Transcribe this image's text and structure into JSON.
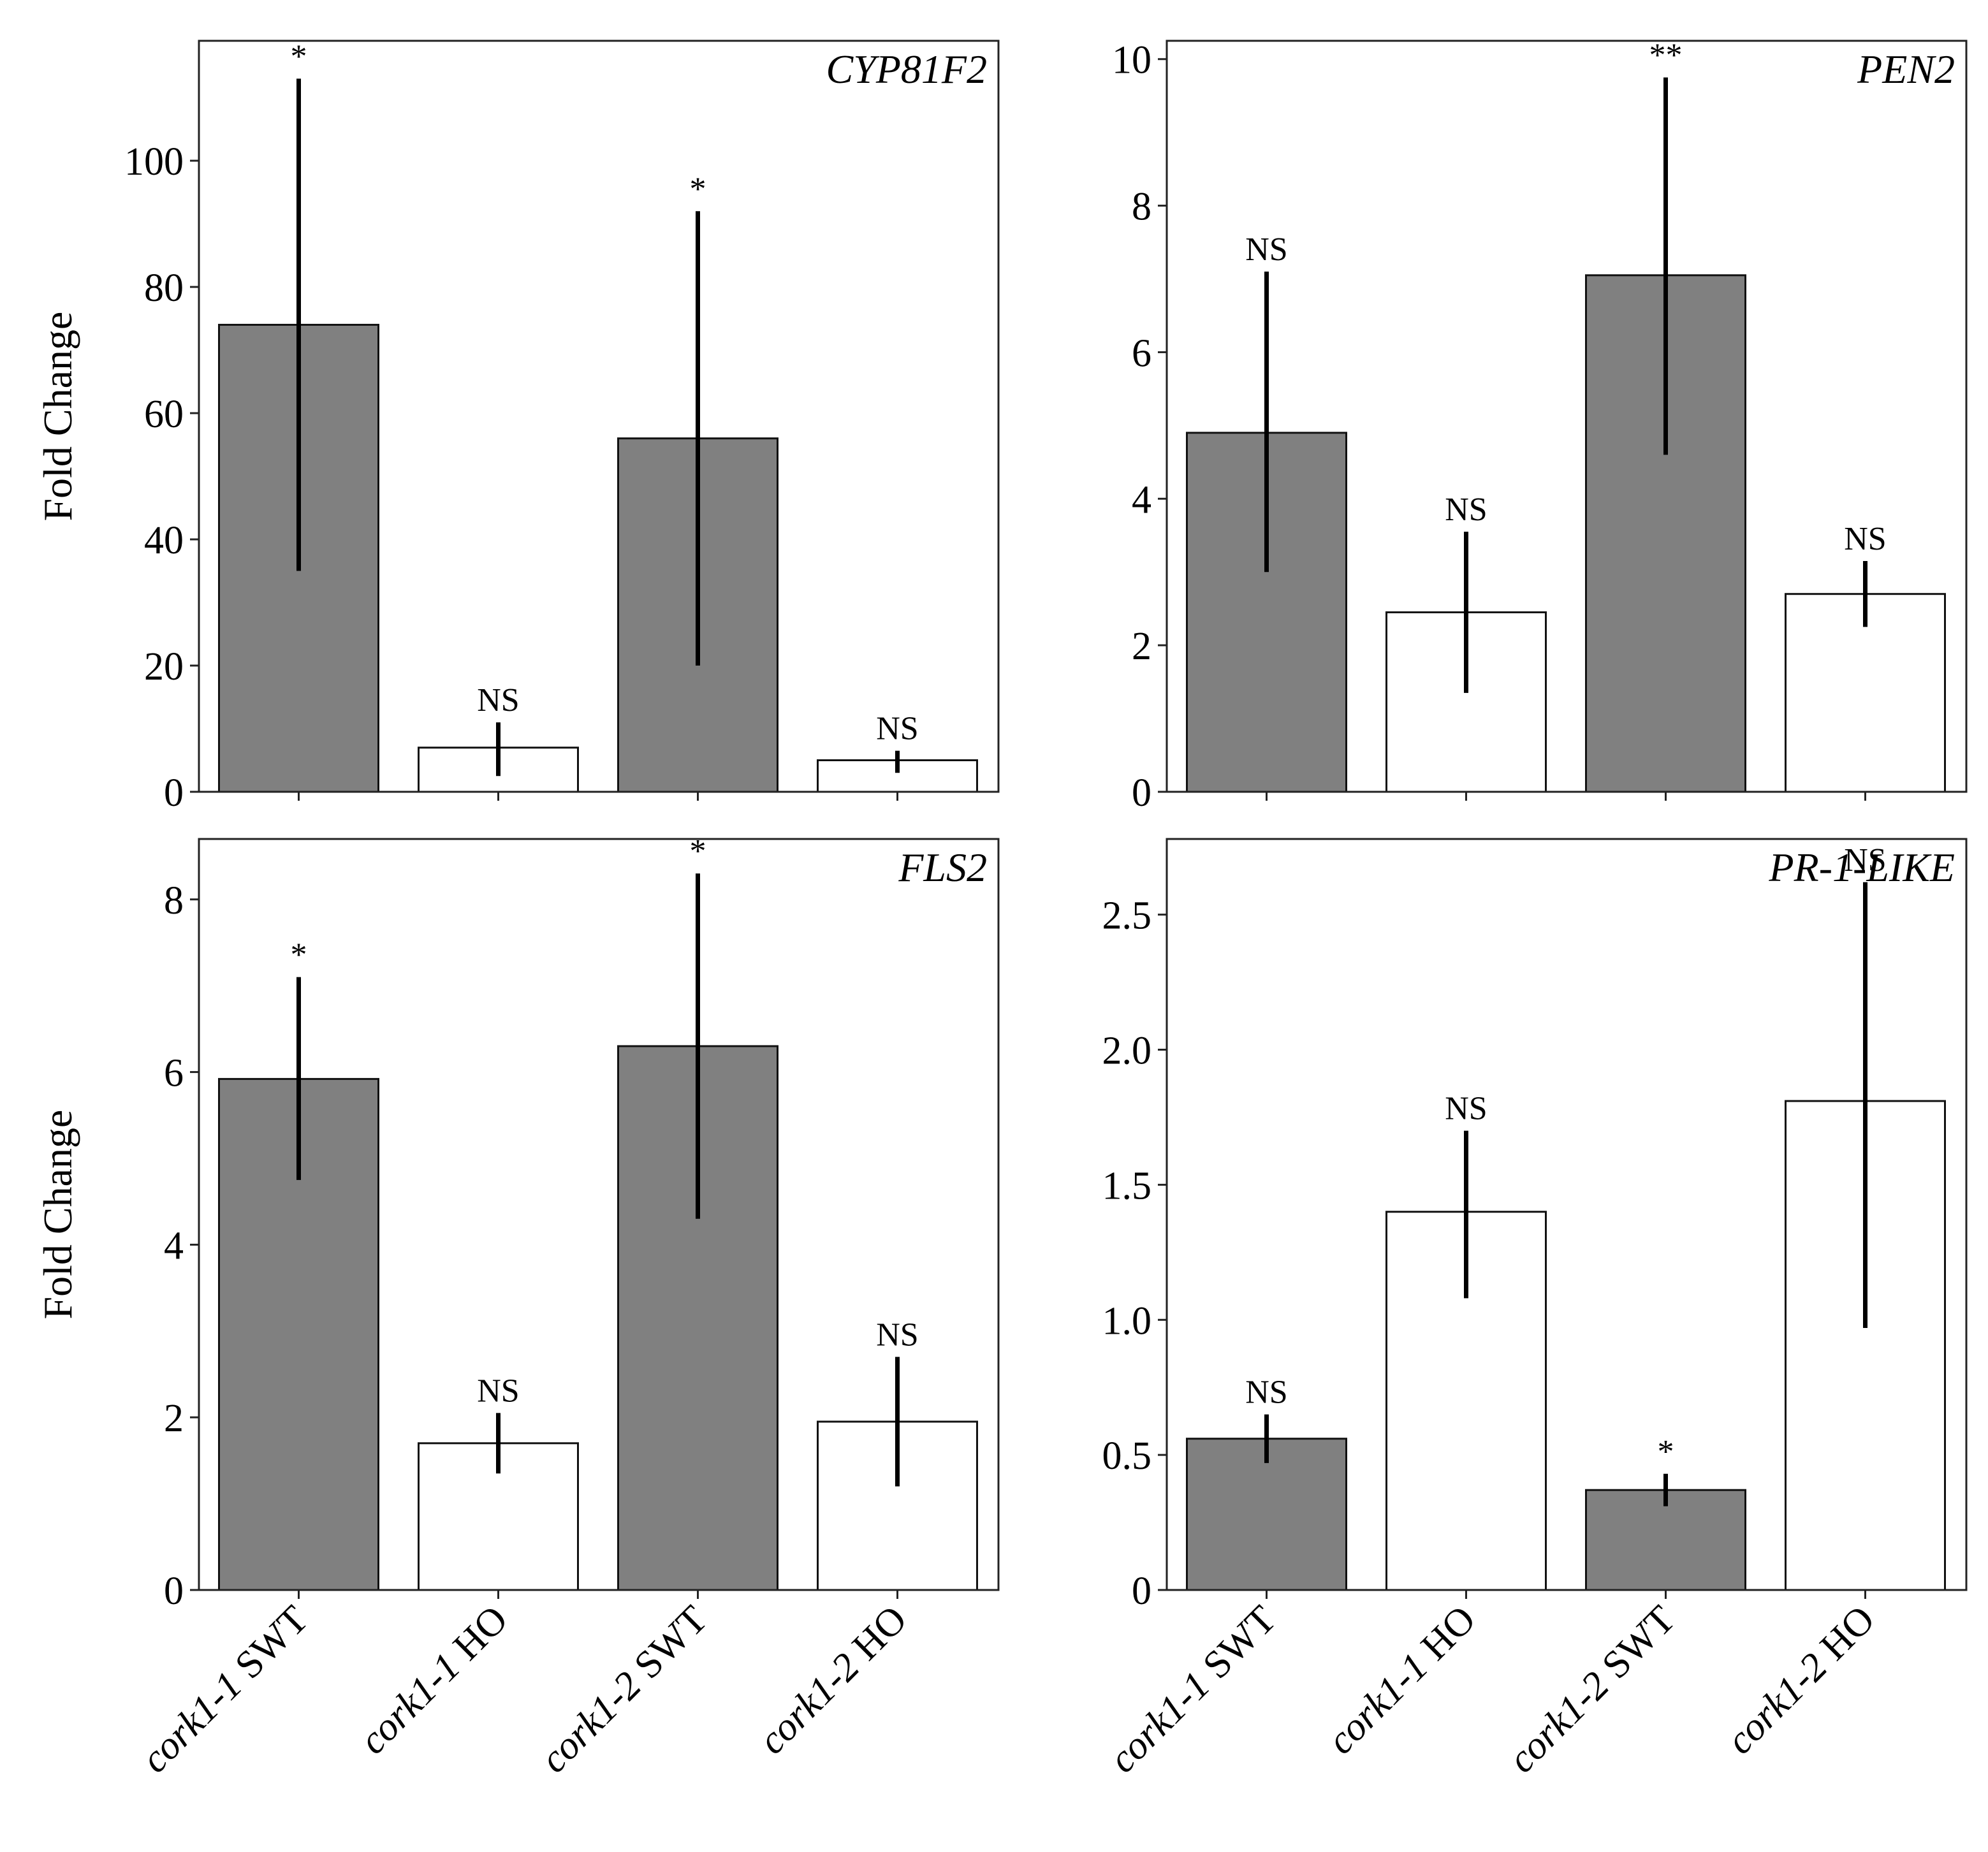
{
  "figure": {
    "ylabel": "Fold Change"
  },
  "chart_data": [
    {
      "type": "bar",
      "title": "CYP81F2",
      "ylabel": "Fold Change",
      "categories": [
        {
          "name": "cork1-1",
          "suffix": " SWT"
        },
        {
          "name": "cork1-1",
          "suffix": " HO"
        },
        {
          "name": "cork1-2",
          "suffix": " SWT"
        },
        {
          "name": "cork1-2",
          "suffix": " HO"
        }
      ],
      "values": [
        74,
        7,
        56,
        5
      ],
      "err_low": [
        35,
        2.5,
        20,
        3
      ],
      "err_high": [
        113,
        11,
        92,
        6.5
      ],
      "annotations": [
        "*",
        "NS",
        "*",
        "NS"
      ],
      "bar_colors": [
        "#808080",
        "#ffffff",
        "#808080",
        "#ffffff"
      ],
      "ylim": [
        0,
        119
      ],
      "yticks": [
        0,
        20,
        40,
        60,
        80,
        100
      ],
      "ytick_labels": [
        "0",
        "20",
        "40",
        "60",
        "80",
        "100"
      ]
    },
    {
      "type": "bar",
      "title": "PEN2",
      "ylabel": "",
      "categories": [
        {
          "name": "cork1-1",
          "suffix": " SWT"
        },
        {
          "name": "cork1-1",
          "suffix": " HO"
        },
        {
          "name": "cork1-2",
          "suffix": " SWT"
        },
        {
          "name": "cork1-2",
          "suffix": " HO"
        }
      ],
      "values": [
        4.9,
        2.45,
        7.05,
        2.7
      ],
      "err_low": [
        3.0,
        1.35,
        4.6,
        2.25
      ],
      "err_high": [
        7.1,
        3.55,
        9.75,
        3.15
      ],
      "annotations": [
        "NS",
        "NS",
        "**",
        "NS"
      ],
      "bar_colors": [
        "#808080",
        "#ffffff",
        "#808080",
        "#ffffff"
      ],
      "ylim": [
        0,
        10.25
      ],
      "yticks": [
        0,
        2,
        4,
        6,
        8,
        10
      ],
      "ytick_labels": [
        "0",
        "2",
        "4",
        "6",
        "8",
        "10"
      ]
    },
    {
      "type": "bar",
      "title": "FLS2",
      "ylabel": "Fold Change",
      "categories": [
        {
          "name": "cork1-1",
          "suffix": " SWT"
        },
        {
          "name": "cork1-1",
          "suffix": " HO"
        },
        {
          "name": "cork1-2",
          "suffix": " SWT"
        },
        {
          "name": "cork1-2",
          "suffix": " HO"
        }
      ],
      "values": [
        5.92,
        1.7,
        6.3,
        1.95
      ],
      "err_low": [
        4.75,
        1.35,
        4.3,
        1.2
      ],
      "err_high": [
        7.1,
        2.05,
        8.3,
        2.7
      ],
      "annotations": [
        "*",
        "NS",
        "*",
        "NS"
      ],
      "bar_colors": [
        "#808080",
        "#ffffff",
        "#808080",
        "#ffffff"
      ],
      "ylim": [
        0,
        8.7
      ],
      "yticks": [
        0,
        2,
        4,
        6,
        8
      ],
      "ytick_labels": [
        "0",
        "2",
        "4",
        "6",
        "8"
      ]
    },
    {
      "type": "bar",
      "title": "PR-1-LIKE",
      "ylabel": "",
      "categories": [
        {
          "name": "cork1-1",
          "suffix": " SWT"
        },
        {
          "name": "cork1-1",
          "suffix": " HO"
        },
        {
          "name": "cork1-2",
          "suffix": " SWT"
        },
        {
          "name": "cork1-2",
          "suffix": " HO"
        }
      ],
      "values": [
        0.56,
        1.4,
        0.37,
        1.81
      ],
      "err_low": [
        0.47,
        1.08,
        0.31,
        0.97
      ],
      "err_high": [
        0.65,
        1.7,
        0.43,
        2.62
      ],
      "annotations": [
        "NS",
        "NS",
        "*",
        "NS"
      ],
      "bar_colors": [
        "#808080",
        "#ffffff",
        "#808080",
        "#ffffff"
      ],
      "ylim": [
        0,
        2.78
      ],
      "yticks": [
        0,
        0.5,
        1.0,
        1.5,
        2.0,
        2.5
      ],
      "ytick_labels": [
        "0",
        "0.5",
        "1.0",
        "1.5",
        "2.0",
        "2.5"
      ]
    }
  ]
}
